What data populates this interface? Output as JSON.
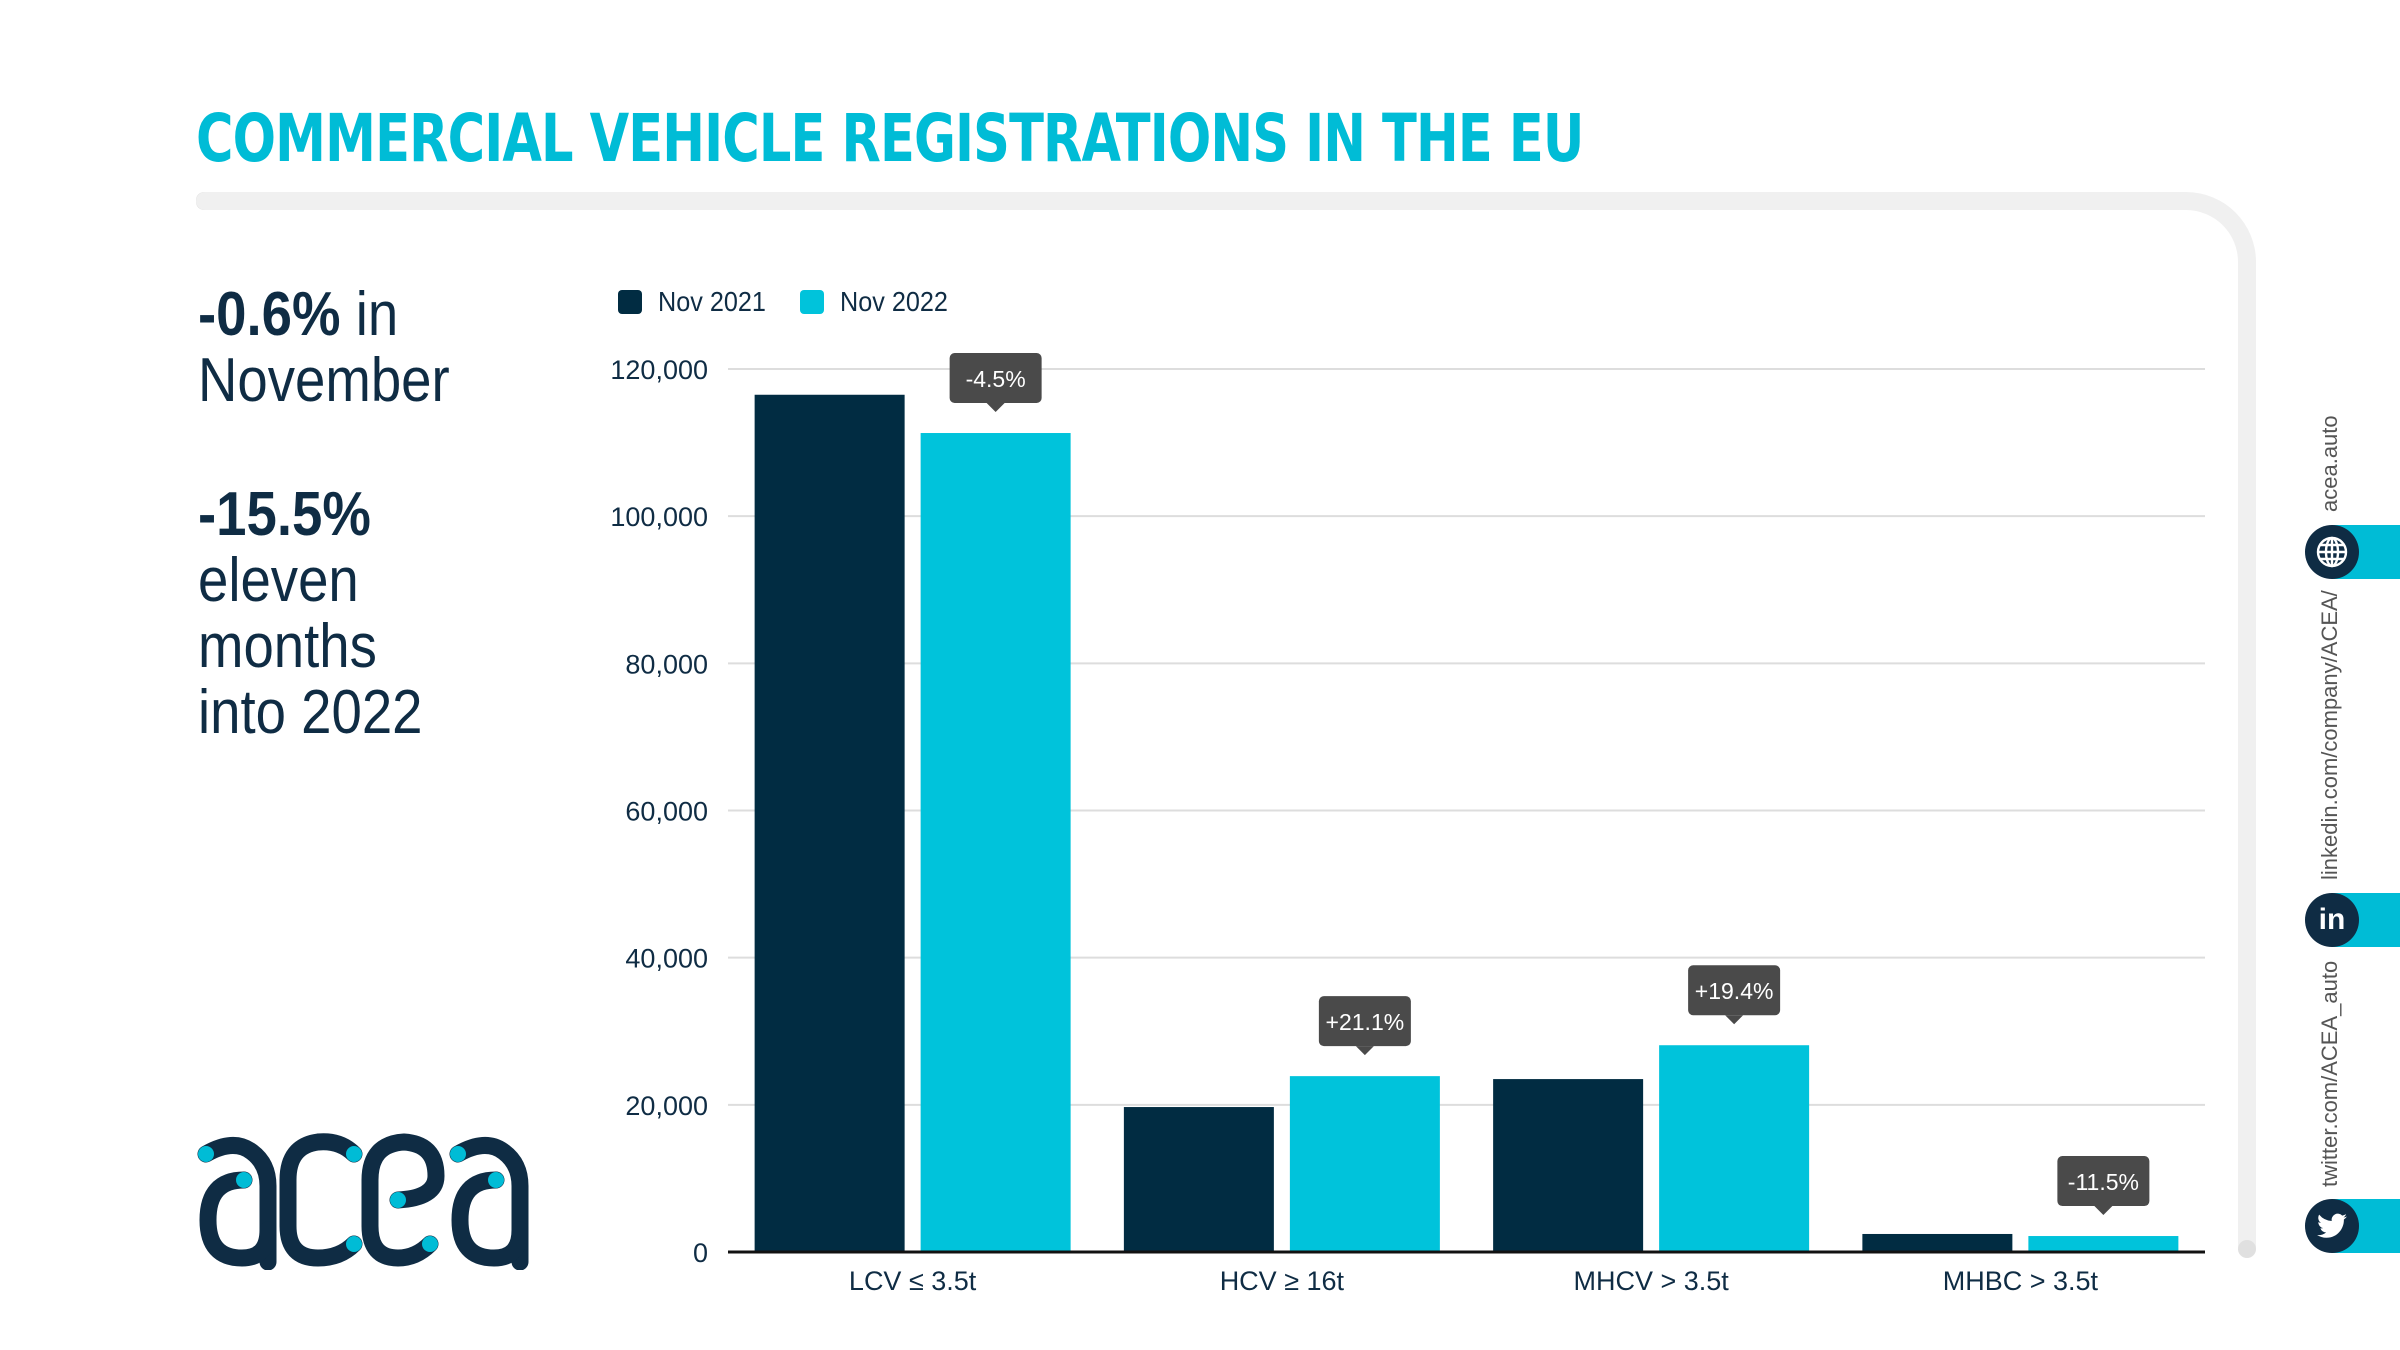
{
  "header": {
    "title": "COMMERCIAL VEHICLE REGISTRATIONS IN THE EU"
  },
  "kpis": [
    {
      "value": "-0.6%",
      "rest_inline": " in",
      "lines": [
        "November"
      ]
    },
    {
      "value": "-15.5%",
      "rest_inline": "",
      "lines": [
        "eleven",
        "months",
        "into 2022"
      ]
    }
  ],
  "logo": {
    "text": "acea",
    "icon": "acea-logo"
  },
  "colors": {
    "accent": "#00bcd6",
    "dark": "#012c42",
    "annotation_bg": "#4a4a4a",
    "gridline": "#dddddd",
    "frame": "#f0f0f0"
  },
  "social": [
    {
      "icon": "globe-icon",
      "text": "acea.auto"
    },
    {
      "icon": "linkedin-icon",
      "text": "linkedin.com/company/ACEA/"
    },
    {
      "icon": "twitter-icon",
      "text": "twitter.com/ACEA_auto"
    }
  ],
  "chart_data": {
    "type": "bar",
    "title": "COMMERCIAL VEHICLE REGISTRATIONS IN THE EU",
    "xlabel": "",
    "ylabel": "",
    "categories": [
      "LCV ≤ 3.5t",
      "HCV ≥ 16t",
      "MHCV > 3.5t",
      "MHBC > 3.5t"
    ],
    "series": [
      {
        "name": "Nov 2021",
        "color": "#012c42",
        "values": [
          116500,
          19700,
          23500,
          2450
        ]
      },
      {
        "name": "Nov 2022",
        "color": "#00c3db",
        "values": [
          111300,
          23900,
          28100,
          2170
        ]
      }
    ],
    "annotations": [
      "-4.5%",
      "+21.1%",
      "+19.4%",
      "-11.5%"
    ],
    "ylim": [
      0,
      120000
    ],
    "yticks": [
      0,
      20000,
      40000,
      60000,
      80000,
      100000,
      120000
    ],
    "ytick_labels": [
      "0",
      "20,000",
      "40,000",
      "60,000",
      "80,000",
      "100,000",
      "120,000"
    ],
    "grid": true,
    "legend_position": "top-left"
  }
}
